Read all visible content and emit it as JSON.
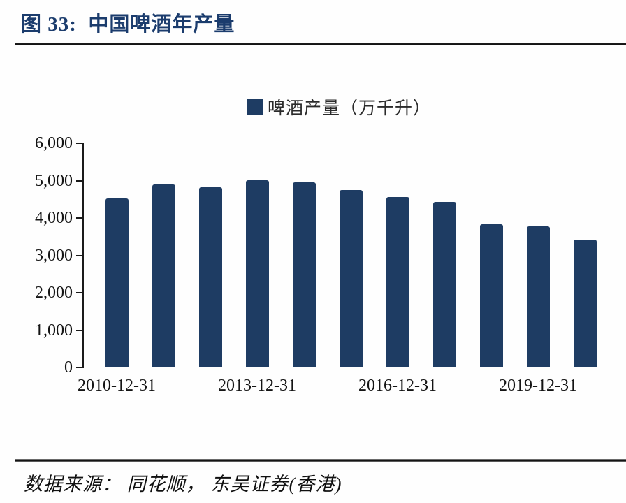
{
  "figure": {
    "title": "图 33:  中国啤酒年产量",
    "source": "数据来源： 同花顺， 东吴证券(香港)"
  },
  "chart_data": {
    "type": "bar",
    "title": "中国啤酒年产量",
    "legend": [
      "啤酒产量（万千升）"
    ],
    "legend_position": "top-center",
    "categories": [
      "2010-12-31",
      "2011-12-31",
      "2012-12-31",
      "2013-12-31",
      "2014-12-31",
      "2015-12-31",
      "2016-12-31",
      "2017-12-31",
      "2018-12-31",
      "2019-12-31",
      "2020-12-31"
    ],
    "values": [
      4520,
      4890,
      4830,
      5010,
      4960,
      4750,
      4560,
      4430,
      3830,
      3780,
      3420
    ],
    "ylabel": "万千升",
    "xlabel": "",
    "ylim": [
      0,
      6000
    ],
    "y_ticks": [
      0,
      1000,
      2000,
      3000,
      4000,
      5000,
      6000
    ],
    "y_tick_labels": [
      "0",
      "1,000",
      "2,000",
      "3,000",
      "4,000",
      "5,000",
      "6,000"
    ],
    "x_label_every": 3,
    "x_tick_labels_shown": [
      "2010-12-31",
      "2013-12-31",
      "2016-12-31",
      "2019-12-31"
    ],
    "grid": false,
    "bar_color": "#1e3c63"
  },
  "colors": {
    "title": "#1b3c6d",
    "bar": "#1e3c63",
    "axis": "#1a1a1a",
    "rule": "#141414"
  }
}
